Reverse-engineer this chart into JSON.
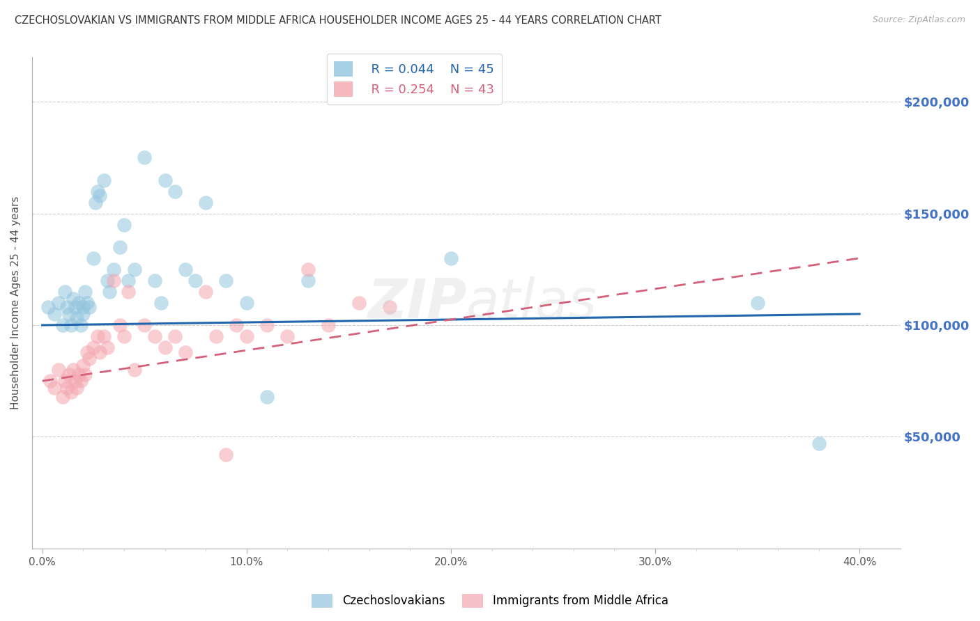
{
  "title": "CZECHOSLOVAKIAN VS IMMIGRANTS FROM MIDDLE AFRICA HOUSEHOLDER INCOME AGES 25 - 44 YEARS CORRELATION CHART",
  "source": "Source: ZipAtlas.com",
  "ylabel": "Householder Income Ages 25 - 44 years",
  "xlabel_ticks": [
    "0.0%",
    "",
    "",
    "",
    "",
    "10.0%",
    "",
    "",
    "",
    "",
    "20.0%",
    "",
    "",
    "",
    "",
    "30.0%",
    "",
    "",
    "",
    "",
    "40.0%"
  ],
  "xlabel_vals": [
    0.0,
    0.02,
    0.04,
    0.06,
    0.08,
    0.1,
    0.12,
    0.14,
    0.16,
    0.18,
    0.2,
    0.22,
    0.24,
    0.26,
    0.28,
    0.3,
    0.32,
    0.34,
    0.36,
    0.38,
    0.4
  ],
  "ytick_labels": [
    "$50,000",
    "$100,000",
    "$150,000",
    "$200,000"
  ],
  "ytick_vals": [
    50000,
    100000,
    150000,
    200000
  ],
  "ylim": [
    0,
    220000
  ],
  "xlim": [
    -0.005,
    0.42
  ],
  "blue_R": "0.044",
  "blue_N": "45",
  "pink_R": "0.254",
  "pink_N": "43",
  "blue_color": "#92c5de",
  "pink_color": "#f4a6b0",
  "blue_line_color": "#2166ac",
  "pink_line_color": "#d4607a",
  "background_color": "#ffffff",
  "grid_color": "#cccccc",
  "title_color": "#333333",
  "ytick_color": "#4472c4",
  "blue_scatter_x": [
    0.003,
    0.006,
    0.008,
    0.01,
    0.011,
    0.012,
    0.013,
    0.014,
    0.015,
    0.016,
    0.017,
    0.018,
    0.019,
    0.02,
    0.02,
    0.021,
    0.022,
    0.023,
    0.025,
    0.026,
    0.027,
    0.028,
    0.03,
    0.032,
    0.033,
    0.035,
    0.038,
    0.04,
    0.042,
    0.045,
    0.05,
    0.055,
    0.058,
    0.06,
    0.065,
    0.07,
    0.075,
    0.08,
    0.09,
    0.1,
    0.11,
    0.13,
    0.2,
    0.35,
    0.38
  ],
  "blue_scatter_y": [
    108000,
    105000,
    110000,
    100000,
    115000,
    108000,
    105000,
    100000,
    112000,
    108000,
    103000,
    110000,
    100000,
    108000,
    105000,
    115000,
    110000,
    108000,
    130000,
    155000,
    160000,
    158000,
    165000,
    120000,
    115000,
    125000,
    135000,
    145000,
    120000,
    125000,
    175000,
    120000,
    110000,
    165000,
    160000,
    125000,
    120000,
    155000,
    120000,
    110000,
    68000,
    120000,
    130000,
    110000,
    47000
  ],
  "pink_scatter_x": [
    0.004,
    0.006,
    0.008,
    0.01,
    0.011,
    0.012,
    0.013,
    0.014,
    0.015,
    0.016,
    0.017,
    0.018,
    0.019,
    0.02,
    0.021,
    0.022,
    0.023,
    0.025,
    0.027,
    0.028,
    0.03,
    0.032,
    0.035,
    0.038,
    0.04,
    0.042,
    0.045,
    0.05,
    0.055,
    0.06,
    0.065,
    0.07,
    0.08,
    0.085,
    0.09,
    0.095,
    0.1,
    0.11,
    0.12,
    0.13,
    0.14,
    0.155,
    0.17
  ],
  "pink_scatter_y": [
    75000,
    72000,
    80000,
    68000,
    75000,
    72000,
    78000,
    70000,
    80000,
    75000,
    72000,
    78000,
    75000,
    82000,
    78000,
    88000,
    85000,
    90000,
    95000,
    88000,
    95000,
    90000,
    120000,
    100000,
    95000,
    115000,
    80000,
    100000,
    95000,
    90000,
    95000,
    88000,
    115000,
    95000,
    42000,
    100000,
    95000,
    100000,
    95000,
    125000,
    100000,
    110000,
    108000
  ],
  "blue_trend_x": [
    0.0,
    0.4
  ],
  "blue_trend_y": [
    100000,
    105000
  ],
  "pink_trend_x": [
    0.0,
    0.4
  ],
  "pink_trend_y": [
    75000,
    130000
  ]
}
